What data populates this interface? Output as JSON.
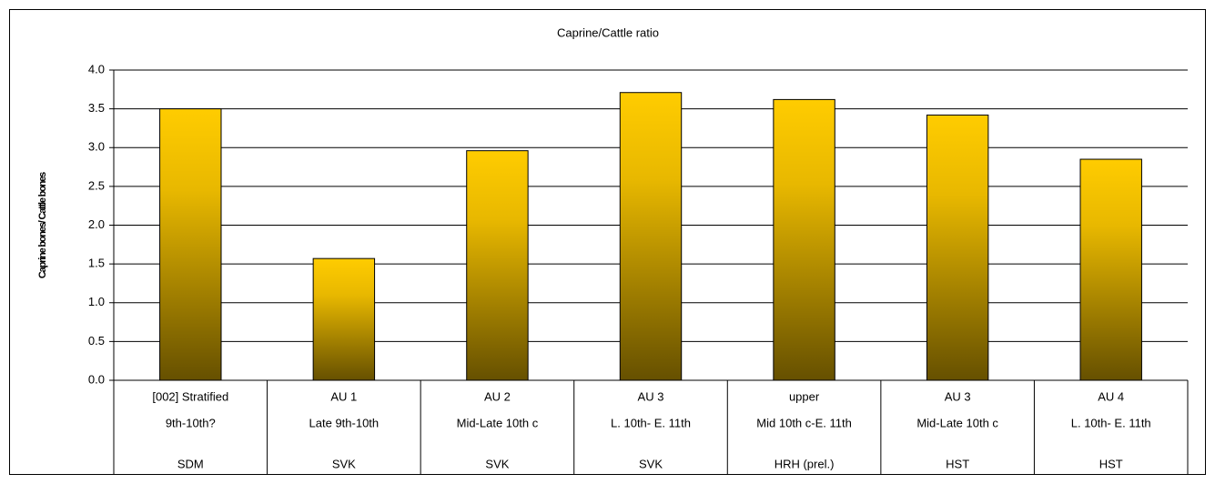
{
  "chart_data": {
    "type": "bar",
    "title": "Caprine/Cattle ratio",
    "y_label": "Caprine bones/ Cattle bones",
    "categories": [
      [
        "[002] Stratified",
        "9th-10th?",
        "SDM"
      ],
      [
        "AU 1",
        "Late 9th-10th",
        "SVK"
      ],
      [
        "AU 2",
        "Mid-Late 10th c",
        "SVK"
      ],
      [
        "AU 3",
        "L. 10th- E. 11th",
        "SVK"
      ],
      [
        "upper",
        "Mid 10th c-E. 11th",
        "HRH (prel.)"
      ],
      [
        "AU 3",
        "Mid-Late 10th c",
        "HST"
      ],
      [
        "AU 4",
        "L. 10th- E. 11th",
        "HST"
      ]
    ],
    "values": [
      3.5,
      1.57,
      2.96,
      3.71,
      3.62,
      3.42,
      2.85
    ],
    "color": "#ffcc00",
    "ylim": [
      0,
      4
    ],
    "yticks": [
      {
        "value": 0,
        "label": "0.0"
      },
      0.5,
      {
        "value": 1,
        "label": "1.0"
      },
      1.5,
      {
        "value": 2,
        "label": "2.0"
      },
      2.5,
      {
        "value": 3,
        "label": "3.0"
      },
      3.5,
      {
        "value": 4,
        "label": "4.0"
      }
    ],
    "grid": true
  }
}
